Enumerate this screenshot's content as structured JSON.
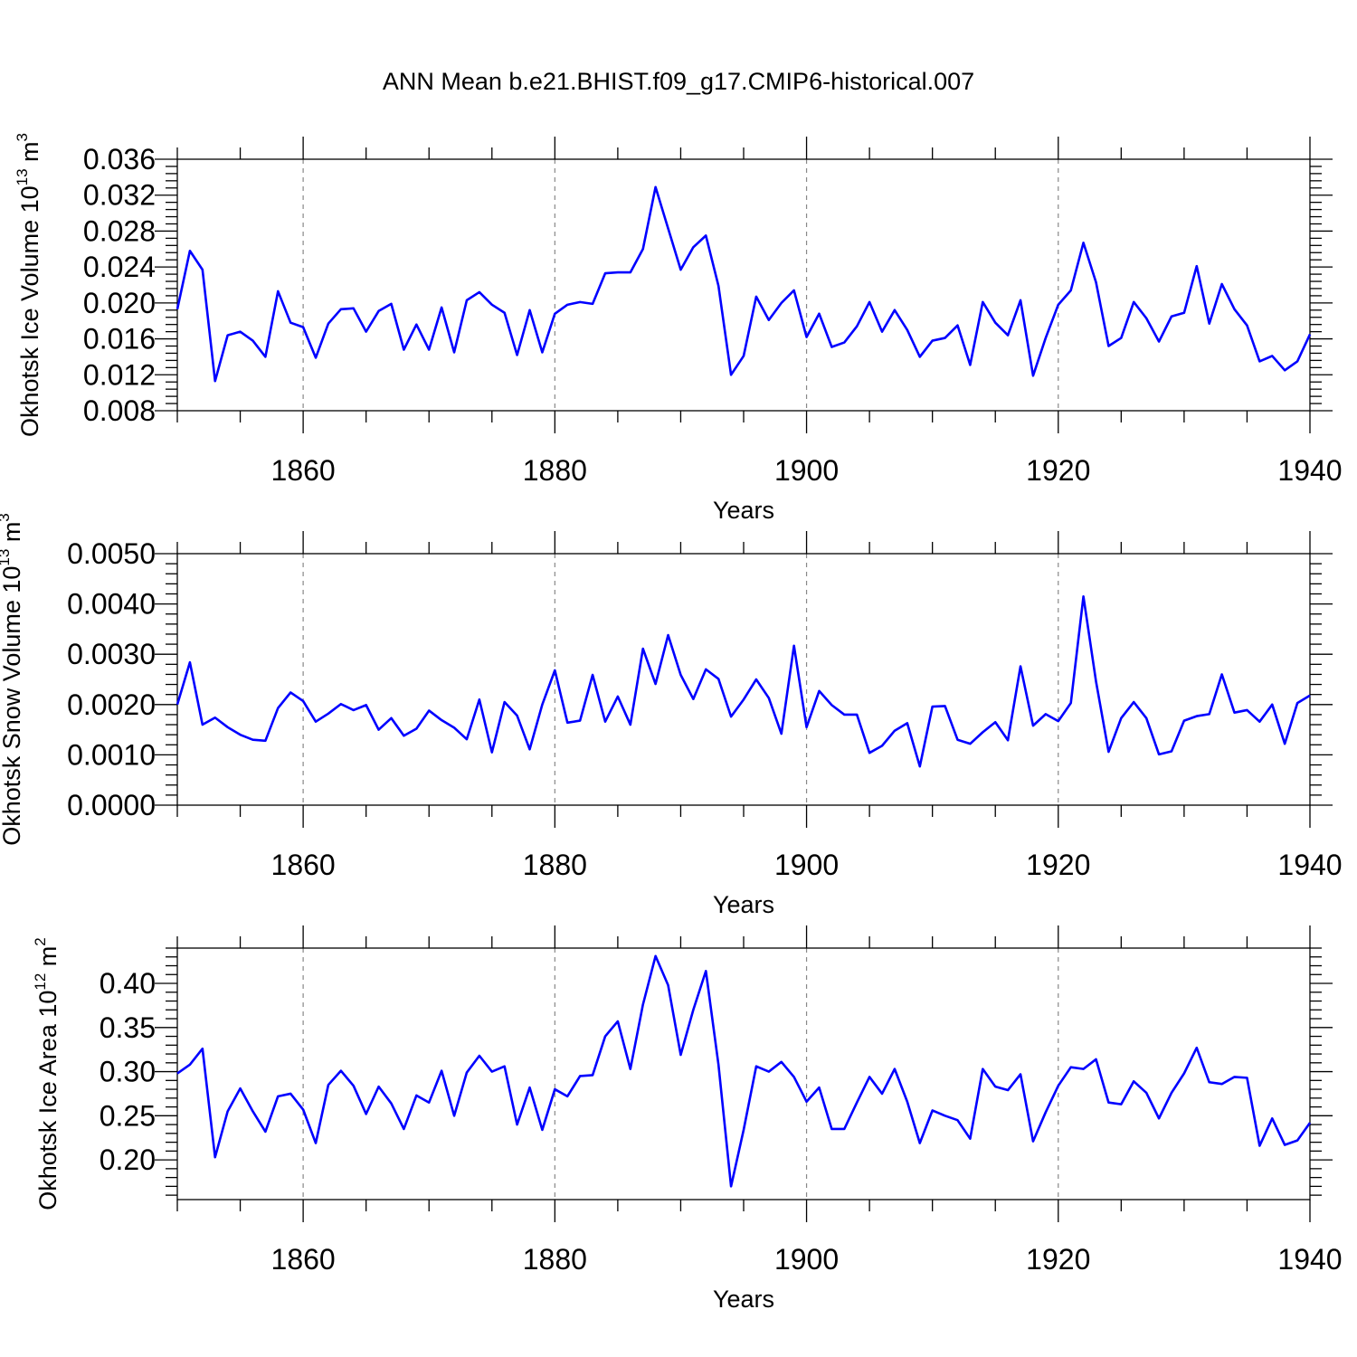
{
  "title": "ANN Mean b.e21.BHIST.f09_g17.CMIP6-historical.007",
  "colors": {
    "series": "#0000ff",
    "grid": "#888888",
    "axes": "#000000"
  },
  "chart_data": [
    {
      "type": "line",
      "title": "ANN Mean b.e21.BHIST.f09_g17.CMIP6-historical.007",
      "xlabel": "Years",
      "ylabel_main": "Okhotsk Ice Volume 10",
      "ylabel_exp": "13",
      "ylabel_unit": " m",
      "ylabel_unit_exp": "3",
      "xlim": [
        1850,
        1940
      ],
      "ylim": [
        0.008,
        0.036
      ],
      "xticks": [
        1860,
        1880,
        1900,
        1920,
        1940
      ],
      "xtick_labels": [
        "1860",
        "1880",
        "1900",
        "1920",
        "1940"
      ],
      "yticks": [
        0.008,
        0.012,
        0.016,
        0.02,
        0.024,
        0.028,
        0.032,
        0.036
      ],
      "ytick_labels": [
        "0.008",
        "0.012",
        "0.016",
        "0.020",
        "0.024",
        "0.028",
        "0.032",
        "0.036"
      ],
      "grid": "vertical dashed at major x ticks",
      "x_start": 1850,
      "series": [
        {
          "values": [
            0.0193,
            0.0258,
            0.0237,
            0.0113,
            0.0164,
            0.0168,
            0.0158,
            0.014,
            0.0213,
            0.0178,
            0.0173,
            0.0139,
            0.0177,
            0.0193,
            0.0194,
            0.0168,
            0.0191,
            0.0199,
            0.0148,
            0.0176,
            0.0148,
            0.0195,
            0.0145,
            0.0203,
            0.0212,
            0.0198,
            0.0189,
            0.0142,
            0.0192,
            0.0145,
            0.0188,
            0.0198,
            0.0201,
            0.0199,
            0.0233,
            0.0234,
            0.0234,
            0.026,
            0.0329,
            0.0283,
            0.0237,
            0.0262,
            0.0275,
            0.0219,
            0.012,
            0.0141,
            0.0207,
            0.0181,
            0.02,
            0.0214,
            0.0162,
            0.0188,
            0.0151,
            0.0156,
            0.0174,
            0.0201,
            0.0168,
            0.0192,
            0.017,
            0.014,
            0.0158,
            0.0161,
            0.0175,
            0.0131,
            0.0201,
            0.0178,
            0.0164,
            0.0203,
            0.0119,
            0.0161,
            0.0198,
            0.0214,
            0.0267,
            0.0223,
            0.0152,
            0.0161,
            0.0201,
            0.0183,
            0.0157,
            0.0185,
            0.0189,
            0.0241,
            0.0177,
            0.0221,
            0.0193,
            0.0175,
            0.0135,
            0.0141,
            0.0125,
            0.0135,
            0.0165
          ]
        }
      ]
    },
    {
      "type": "line",
      "xlabel": "Years",
      "ylabel_main": "Okhotsk Snow Volume 10",
      "ylabel_exp": "13",
      "ylabel_unit": " m",
      "ylabel_unit_exp": "3",
      "xlim": [
        1850,
        1940
      ],
      "ylim": [
        0.0,
        0.005
      ],
      "xticks": [
        1860,
        1880,
        1900,
        1920,
        1940
      ],
      "xtick_labels": [
        "1860",
        "1880",
        "1900",
        "1920",
        "1940"
      ],
      "yticks": [
        0.0,
        0.001,
        0.002,
        0.003,
        0.004,
        0.005
      ],
      "ytick_labels": [
        "0.0000",
        "0.0010",
        "0.0020",
        "0.0030",
        "0.0040",
        "0.0050"
      ],
      "grid": "vertical dashed at major x ticks",
      "x_start": 1850,
      "series": [
        {
          "values": [
            0.002,
            0.00284,
            0.0016,
            0.00174,
            0.00155,
            0.0014,
            0.0013,
            0.00128,
            0.00193,
            0.00224,
            0.00207,
            0.00166,
            0.00182,
            0.00201,
            0.00189,
            0.00199,
            0.0015,
            0.00173,
            0.00138,
            0.00152,
            0.00188,
            0.00169,
            0.00154,
            0.00131,
            0.0021,
            0.00105,
            0.00205,
            0.00178,
            0.00111,
            0.002,
            0.00268,
            0.00164,
            0.00168,
            0.00259,
            0.00166,
            0.00216,
            0.0016,
            0.00311,
            0.00241,
            0.00338,
            0.00259,
            0.00211,
            0.0027,
            0.00251,
            0.00176,
            0.0021,
            0.0025,
            0.00213,
            0.00142,
            0.00317,
            0.00155,
            0.00227,
            0.00199,
            0.0018,
            0.0018,
            0.00104,
            0.00118,
            0.00148,
            0.00163,
            0.00077,
            0.00196,
            0.00197,
            0.0013,
            0.00122,
            0.00145,
            0.00165,
            0.00129,
            0.00276,
            0.00158,
            0.00181,
            0.00167,
            0.00203,
            0.00415,
            0.00246,
            0.00106,
            0.00173,
            0.00205,
            0.00173,
            0.00101,
            0.00107,
            0.00168,
            0.00177,
            0.00181,
            0.0026,
            0.00184,
            0.00189,
            0.00166,
            0.002,
            0.00122,
            0.00203,
            0.00218
          ]
        }
      ]
    },
    {
      "type": "line",
      "xlabel": "Years",
      "ylabel_main": "Okhotsk Ice Area 10",
      "ylabel_exp": "12",
      "ylabel_unit": " m",
      "ylabel_unit_exp": "2",
      "xlim": [
        1850,
        1940
      ],
      "ylim": [
        0.155,
        0.44
      ],
      "xticks": [
        1860,
        1880,
        1900,
        1920,
        1940
      ],
      "xtick_labels": [
        "1860",
        "1880",
        "1900",
        "1920",
        "1940"
      ],
      "yticks": [
        0.2,
        0.25,
        0.3,
        0.35,
        0.4
      ],
      "ytick_labels": [
        "0.20",
        "0.25",
        "0.30",
        "0.35",
        "0.40"
      ],
      "grid": "vertical dashed at major x ticks",
      "x_start": 1850,
      "series": [
        {
          "values": [
            0.298,
            0.308,
            0.326,
            0.203,
            0.255,
            0.281,
            0.255,
            0.232,
            0.272,
            0.275,
            0.257,
            0.219,
            0.285,
            0.301,
            0.284,
            0.252,
            0.283,
            0.264,
            0.235,
            0.273,
            0.265,
            0.301,
            0.25,
            0.299,
            0.318,
            0.3,
            0.306,
            0.24,
            0.282,
            0.234,
            0.28,
            0.272,
            0.295,
            0.296,
            0.34,
            0.357,
            0.303,
            0.376,
            0.431,
            0.398,
            0.319,
            0.37,
            0.414,
            0.308,
            0.17,
            0.234,
            0.306,
            0.3,
            0.311,
            0.294,
            0.266,
            0.282,
            0.235,
            0.235,
            0.265,
            0.294,
            0.275,
            0.303,
            0.266,
            0.219,
            0.256,
            0.25,
            0.245,
            0.224,
            0.303,
            0.283,
            0.279,
            0.297,
            0.221,
            0.254,
            0.284,
            0.305,
            0.303,
            0.314,
            0.265,
            0.263,
            0.289,
            0.276,
            0.247,
            0.276,
            0.298,
            0.327,
            0.288,
            0.286,
            0.294,
            0.293,
            0.216,
            0.247,
            0.217,
            0.222,
            0.242
          ]
        }
      ]
    }
  ]
}
